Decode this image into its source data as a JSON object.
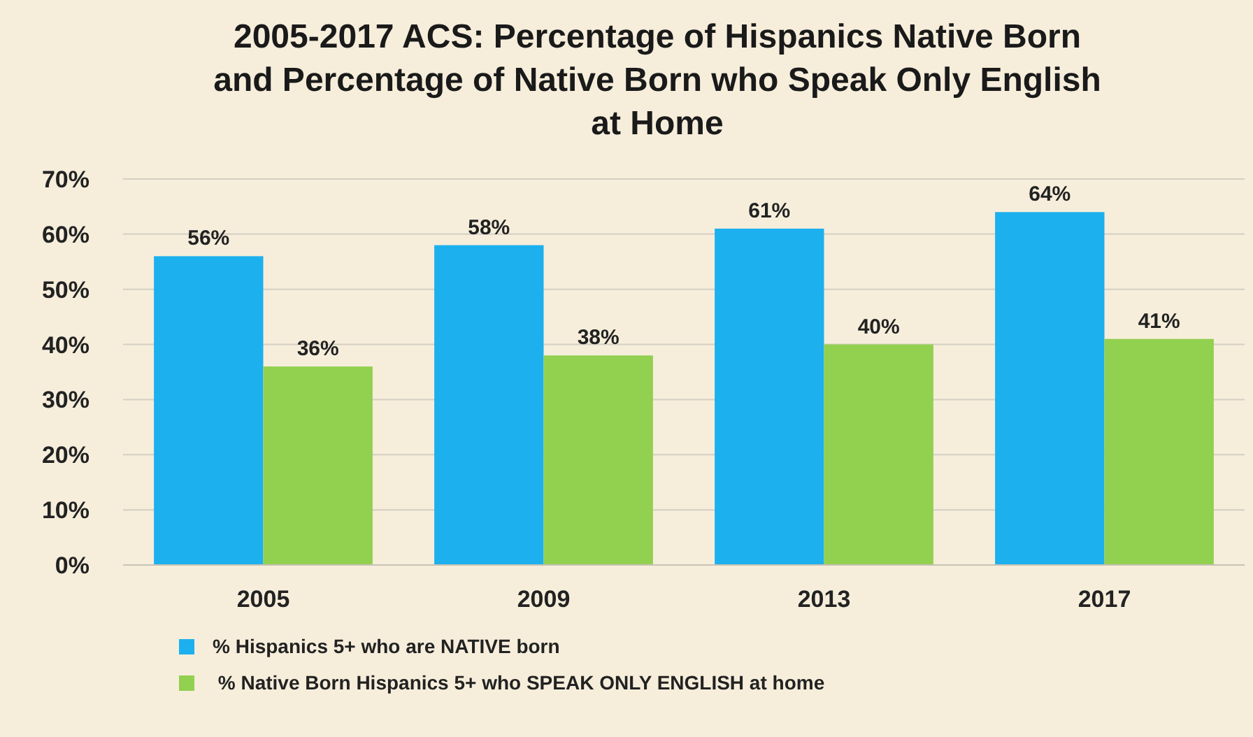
{
  "chart_data": {
    "type": "bar",
    "title": "2005-2017 ACS: Percentage of Hispanics Native Born and Percentage of Native Born who Speak Only English at Home",
    "categories": [
      "2005",
      "2009",
      "2013",
      "2017"
    ],
    "series": [
      {
        "name": "% Hispanics 5+ who are NATIVE born",
        "color": "#1cb0ee",
        "values": [
          56,
          58,
          61,
          64
        ],
        "value_labels": [
          "56%",
          "58%",
          "61%",
          "64%"
        ]
      },
      {
        "name": " % Native Born Hispanics 5+ who SPEAK ONLY ENGLISH at home",
        "color": "#92d050",
        "values": [
          36,
          38,
          40,
          41
        ],
        "value_labels": [
          "36%",
          "38%",
          "40%",
          "41%"
        ]
      }
    ],
    "ylim": [
      0,
      70
    ],
    "yticks": [
      {
        "value": 0,
        "label": "0%"
      },
      {
        "value": 10,
        "label": "10%"
      },
      {
        "value": 20,
        "label": "20%"
      },
      {
        "value": 30,
        "label": "30%"
      },
      {
        "value": 40,
        "label": "40%"
      },
      {
        "value": 50,
        "label": "50%"
      },
      {
        "value": 60,
        "label": "60%"
      },
      {
        "value": 70,
        "label": "70%"
      }
    ],
    "grid": "y",
    "legend": "bottom left"
  }
}
